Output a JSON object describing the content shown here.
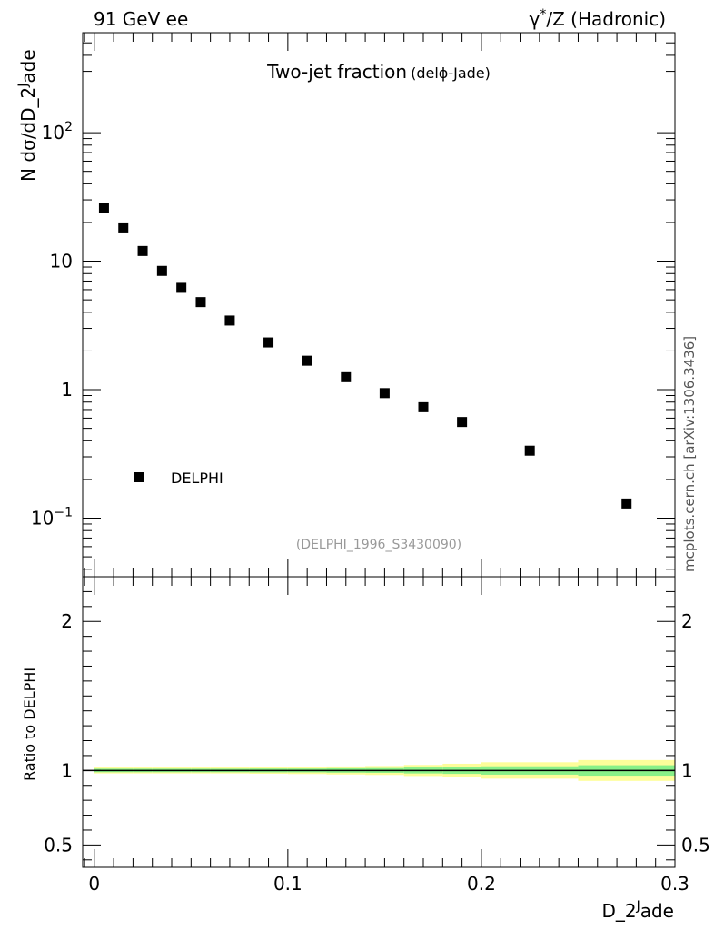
{
  "header": {
    "left": "91 GeV ee",
    "right_prefix": "γ",
    "right_sup": "*",
    "right_suffix": "/Z (Hadronic)"
  },
  "side_label": "mcplots.cern.ch [arXiv:1306.3436]",
  "chart_data": [
    {
      "type": "scatter",
      "title_main": "Two-jet fraction",
      "title_sub": "(delϕ-Jade)",
      "ylabel_main": "N dσ/dD_2",
      "ylabel_sup": "J",
      "ylabel_tail": "ade",
      "yscale": "log",
      "ylim": [
        0.035,
        600
      ],
      "xlim": [
        -0.006,
        0.3
      ],
      "y_ticks": [
        {
          "value": 100,
          "base": "10",
          "exp": "2"
        },
        {
          "value": 10,
          "base": "10",
          "exp": ""
        },
        {
          "value": 1,
          "base": "1",
          "exp": ""
        },
        {
          "value": 0.1,
          "base": "10",
          "exp": "−1"
        }
      ],
      "legend": {
        "label": "DELPHI",
        "placement": "lower-left"
      },
      "watermark": "(DELPHI_1996_S3430090)",
      "series": [
        {
          "name": "DELPHI",
          "marker": "square",
          "color": "#000000",
          "x": [
            0.005,
            0.015,
            0.025,
            0.035,
            0.045,
            0.055,
            0.07,
            0.09,
            0.11,
            0.13,
            0.15,
            0.17,
            0.19,
            0.225,
            0.275
          ],
          "y": [
            26,
            18.3,
            12,
            8.4,
            6.2,
            4.8,
            3.45,
            2.33,
            1.68,
            1.25,
            0.94,
            0.73,
            0.56,
            0.335,
            0.13
          ]
        }
      ]
    },
    {
      "type": "area",
      "ylabel": "Ratio to DELPHI",
      "xlabel_main": "D_2",
      "xlabel_sup": "J",
      "xlabel_tail": "ade",
      "ylim": [
        0.35,
        2.3
      ],
      "xlim": [
        -0.006,
        0.3
      ],
      "y_ticks": [
        {
          "value": 2,
          "label": "2"
        },
        {
          "value": 1,
          "label": "1"
        },
        {
          "value": 0.5,
          "label": "0.5"
        }
      ],
      "x_ticks": [
        {
          "value": 0,
          "label": "0"
        },
        {
          "value": 0.1,
          "label": "0.1"
        },
        {
          "value": 0.2,
          "label": "0.2"
        },
        {
          "value": 0.3,
          "label": "0.3"
        }
      ],
      "reference_line": 1,
      "bins": {
        "edges": [
          0,
          0.01,
          0.02,
          0.03,
          0.04,
          0.05,
          0.06,
          0.08,
          0.1,
          0.12,
          0.14,
          0.16,
          0.18,
          0.2,
          0.25,
          0.3
        ],
        "inner_band": [
          0.012,
          0.012,
          0.012,
          0.012,
          0.012,
          0.012,
          0.012,
          0.013,
          0.013,
          0.015,
          0.016,
          0.02,
          0.023,
          0.028,
          0.035
        ],
        "outer_band": [
          0.02,
          0.02,
          0.02,
          0.02,
          0.02,
          0.02,
          0.02,
          0.022,
          0.024,
          0.027,
          0.03,
          0.037,
          0.045,
          0.055,
          0.07
        ],
        "inner_color": "#88f088",
        "outer_color": "#fdfd9a"
      }
    }
  ]
}
